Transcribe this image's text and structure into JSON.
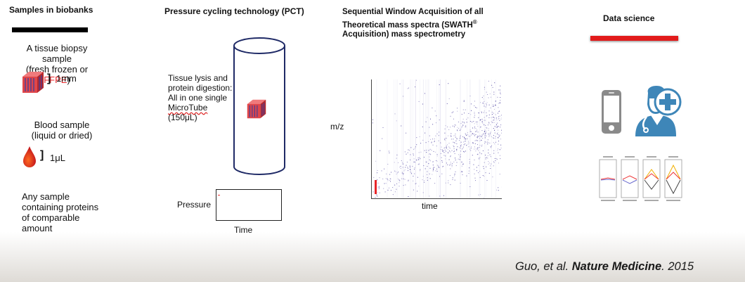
{
  "colors": {
    "accent_red": "#e8262a",
    "cube_red": "#e0464a",
    "scatter_blue": "#4b3fa0",
    "icon_blue": "#3e86b8"
  },
  "col1": {
    "title": "Samples in biobanks",
    "tissue_line1": "A tissue biopsy sample",
    "tissue_line2_a": "(fresh frozen or ",
    "tissue_line2_b": "FFPE",
    "tissue_line2_c": ")",
    "tissue_size": "1mm",
    "blood_line1": "Blood sample",
    "blood_line2": "(liquid or dried)",
    "blood_size": "1μL",
    "any_lines": [
      "Any sample",
      "containing proteins",
      "of comparable",
      "amount"
    ]
  },
  "col2": {
    "title": "Pressure cycling technology (PCT)",
    "tube_lines": [
      "Tissue lysis and",
      "protein digestion:",
      "All in one single"
    ],
    "tube_microtube": "MicroTube",
    "tube_volume": "(150μL)",
    "pressure_label": "Pressure",
    "time_label": "Time"
  },
  "col3": {
    "title_line1": "Sequential Window Acquisition of all",
    "title_line2": "Theoretical mass spectra (SWATH",
    "title_sup": "®",
    "title_line3": "Acquisition) mass spectrometry",
    "ylabel": "m/z",
    "xlabel": "time"
  },
  "col4": {
    "title": "Data science",
    "icons": [
      "smartphone-icon",
      "doctor-icon",
      "plus-icon"
    ]
  },
  "citation": {
    "prefix": "Guo, et al. ",
    "journal": "Nature Medicine",
    "suffix": ". 2015"
  }
}
